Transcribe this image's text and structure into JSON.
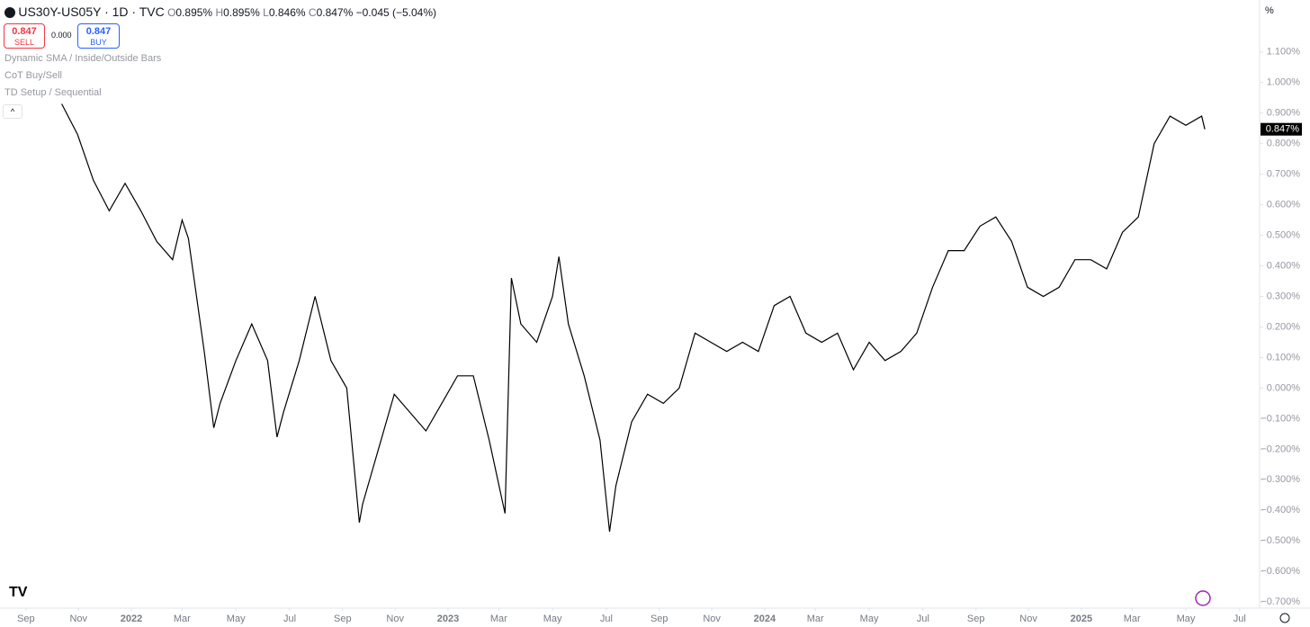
{
  "ui": {
    "symbol": "US30Y-US05Y · 1D · TVC",
    "o_key": "O",
    "o": "0.895%",
    "h_key": "H",
    "h": "0.895%",
    "l_key": "L",
    "l": "0.846%",
    "c_key": "C",
    "c": "0.847%",
    "change": "−0.045 (−5.04%)",
    "sell_price": "0.847",
    "sell": "SELL",
    "spread": "0.000",
    "buy_price": "0.847",
    "buy": "BUY",
    "indicators": [
      "Dynamic SMA / Inside/Outside Bars",
      "CoT Buy/Sell",
      "TD Setup / Sequential"
    ],
    "unit": "%",
    "last_price": "0.847%"
  },
  "chart_data": {
    "type": "line",
    "color": "#000000",
    "x": [
      2021.78,
      2021.83,
      2021.88,
      2021.93,
      2021.98,
      2022.03,
      2022.08,
      2022.13,
      2022.16,
      2022.18,
      2022.23,
      2022.26,
      2022.28,
      2022.33,
      2022.38,
      2022.43,
      2022.46,
      2022.48,
      2022.53,
      2022.58,
      2022.63,
      2022.68,
      2022.72,
      2022.73,
      2022.78,
      2022.83,
      2022.88,
      2022.93,
      2022.98,
      2023.03,
      2023.08,
      2023.13,
      2023.18,
      2023.2,
      2023.23,
      2023.28,
      2023.33,
      2023.35,
      2023.38,
      2023.43,
      2023.48,
      2023.51,
      2023.53,
      2023.58,
      2023.63,
      2023.68,
      2023.73,
      2023.78,
      2023.83,
      2023.88,
      2023.93,
      2023.98,
      2024.03,
      2024.08,
      2024.13,
      2024.18,
      2024.23,
      2024.28,
      2024.33,
      2024.38,
      2024.43,
      2024.48,
      2024.53,
      2024.58,
      2024.63,
      2024.68,
      2024.73,
      2024.78,
      2024.83,
      2024.88,
      2024.93,
      2024.98,
      2025.03,
      2025.08,
      2025.13,
      2025.18,
      2025.23,
      2025.28,
      2025.33,
      2025.38,
      2025.39
    ],
    "values": [
      0.93,
      0.83,
      0.68,
      0.58,
      0.67,
      0.58,
      0.48,
      0.42,
      0.55,
      0.49,
      0.12,
      -0.13,
      -0.05,
      0.09,
      0.21,
      0.09,
      -0.16,
      -0.08,
      0.09,
      0.3,
      0.09,
      0.0,
      -0.44,
      -0.38,
      -0.2,
      -0.02,
      -0.08,
      -0.14,
      -0.05,
      0.04,
      0.04,
      -0.17,
      -0.41,
      0.36,
      0.21,
      0.15,
      0.3,
      0.43,
      0.21,
      0.04,
      -0.17,
      -0.47,
      -0.32,
      -0.11,
      -0.02,
      -0.05,
      0.0,
      0.18,
      0.15,
      0.12,
      0.15,
      0.12,
      0.27,
      0.3,
      0.18,
      0.15,
      0.18,
      0.06,
      0.15,
      0.09,
      0.12,
      0.18,
      0.33,
      0.45,
      0.45,
      0.53,
      0.56,
      0.48,
      0.33,
      0.3,
      0.33,
      0.42,
      0.42,
      0.39,
      0.51,
      0.56,
      0.8,
      0.89,
      0.86,
      0.89,
      0.847
    ],
    "xlim": [
      2021.585,
      2025.563
    ],
    "ylim": [
      -0.72,
      1.27
    ],
    "xticks": [
      {
        "value": 2021.667,
        "label": "Sep"
      },
      {
        "value": 2021.833,
        "label": "Nov"
      },
      {
        "value": 2022,
        "label": "2022"
      },
      {
        "value": 2022.16,
        "label": "Mar"
      },
      {
        "value": 2022.33,
        "label": "May"
      },
      {
        "value": 2022.5,
        "label": "Jul"
      },
      {
        "value": 2022.667,
        "label": "Sep"
      },
      {
        "value": 2022.833,
        "label": "Nov"
      },
      {
        "value": 2023,
        "label": "2023"
      },
      {
        "value": 2023.16,
        "label": "Mar"
      },
      {
        "value": 2023.33,
        "label": "May"
      },
      {
        "value": 2023.5,
        "label": "Jul"
      },
      {
        "value": 2023.667,
        "label": "Sep"
      },
      {
        "value": 2023.833,
        "label": "Nov"
      },
      {
        "value": 2024,
        "label": "2024"
      },
      {
        "value": 2024.16,
        "label": "Mar"
      },
      {
        "value": 2024.33,
        "label": "May"
      },
      {
        "value": 2024.5,
        "label": "Jul"
      },
      {
        "value": 2024.667,
        "label": "Sep"
      },
      {
        "value": 2024.833,
        "label": "Nov"
      },
      {
        "value": 2025,
        "label": "2025"
      },
      {
        "value": 2025.16,
        "label": "Mar"
      },
      {
        "value": 2025.33,
        "label": "May"
      },
      {
        "value": 2025.5,
        "label": "Jul"
      }
    ],
    "yticks": [
      {
        "value": 1.1,
        "label": "1.100%"
      },
      {
        "value": 1.0,
        "label": "1.000%"
      },
      {
        "value": 0.9,
        "label": "0.900%"
      },
      {
        "value": 0.8,
        "label": "0.800%"
      },
      {
        "value": 0.7,
        "label": "0.700%"
      },
      {
        "value": 0.6,
        "label": "0.600%"
      },
      {
        "value": 0.5,
        "label": "0.500%"
      },
      {
        "value": 0.4,
        "label": "0.400%"
      },
      {
        "value": 0.3,
        "label": "0.300%"
      },
      {
        "value": 0.2,
        "label": "0.200%"
      },
      {
        "value": 0.1,
        "label": "0.100%"
      },
      {
        "value": 0,
        "label": "0.000%"
      },
      {
        "value": -0.1,
        "label": "−0.100%"
      },
      {
        "value": -0.2,
        "label": "−0.200%"
      },
      {
        "value": -0.3,
        "label": "−0.300%"
      },
      {
        "value": -0.4,
        "label": "−0.400%"
      },
      {
        "value": -0.5,
        "label": "−0.500%"
      },
      {
        "value": -0.6,
        "label": "−0.600%"
      },
      {
        "value": -0.7,
        "label": "−0.700%"
      }
    ]
  }
}
